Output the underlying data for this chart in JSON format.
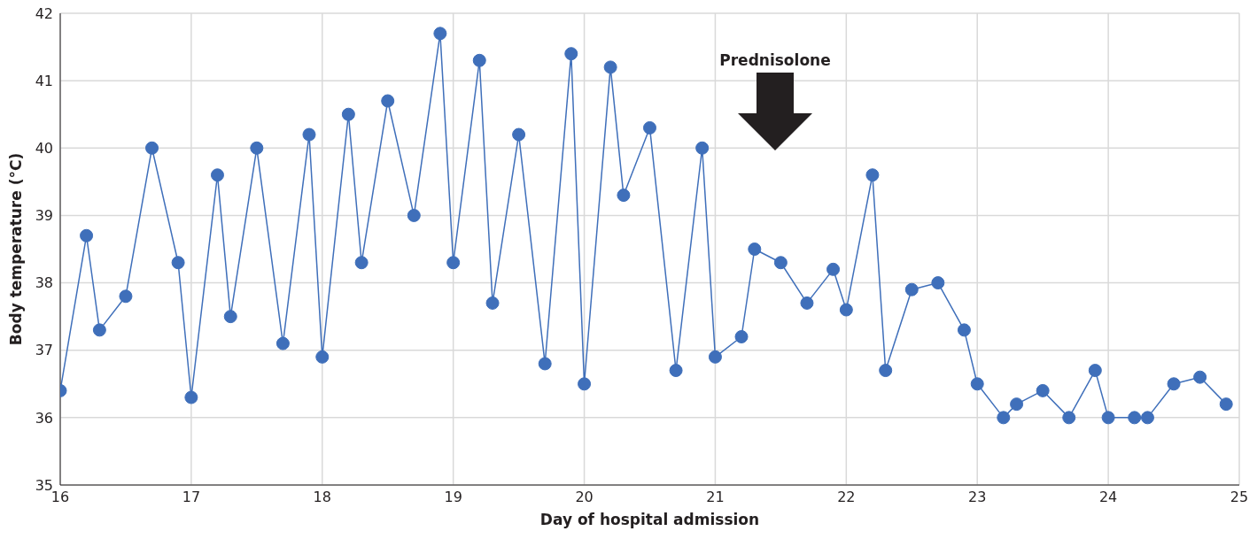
{
  "chart_data": {
    "type": "line",
    "xlabel": "Day of hospital admission",
    "ylabel": "Body temperature (°C)",
    "x": [
      16.0,
      16.2,
      16.3,
      16.5,
      16.7,
      16.9,
      17.0,
      17.2,
      17.3,
      17.5,
      17.7,
      17.9,
      18.0,
      18.2,
      18.3,
      18.5,
      18.7,
      18.9,
      19.0,
      19.2,
      19.3,
      19.5,
      19.7,
      19.9,
      20.0,
      20.2,
      20.3,
      20.5,
      20.7,
      20.9,
      21.0,
      21.2,
      21.3,
      21.5,
      21.7,
      21.9,
      22.0,
      22.2,
      22.3,
      22.5,
      22.7,
      22.9,
      23.0,
      23.2,
      23.3,
      23.5,
      23.7,
      23.9,
      24.0,
      24.2,
      24.3,
      24.5,
      24.7,
      24.9
    ],
    "series": [
      {
        "color": "#3f6fba",
        "values": [
          36.4,
          38.7,
          37.3,
          37.8,
          40.0,
          38.3,
          36.3,
          39.6,
          37.5,
          40.0,
          37.1,
          40.2,
          36.9,
          40.5,
          38.3,
          40.7,
          39.0,
          41.7,
          38.3,
          41.3,
          37.7,
          40.2,
          36.8,
          41.4,
          36.5,
          41.2,
          39.3,
          40.3,
          36.7,
          40.0,
          36.9,
          37.2,
          38.5,
          38.3,
          37.7,
          38.2,
          37.6,
          39.6,
          36.7,
          37.9,
          38.0,
          37.3,
          36.5,
          36.0,
          36.2,
          36.4,
          36.0,
          36.7,
          36.0,
          36.0,
          36.0,
          36.5,
          36.6,
          36.2
        ]
      }
    ],
    "xlim": [
      16,
      25
    ],
    "xticks": [
      16,
      17,
      18,
      19,
      20,
      21,
      22,
      23,
      24,
      25
    ],
    "ylim": [
      35,
      42
    ],
    "yticks": [
      35,
      36,
      37,
      38,
      39,
      40,
      41,
      42
    ],
    "annotations": [
      "Prednisolone"
    ],
    "grid": true,
    "legend": false,
    "marker": "circle",
    "line_style": "solid"
  }
}
